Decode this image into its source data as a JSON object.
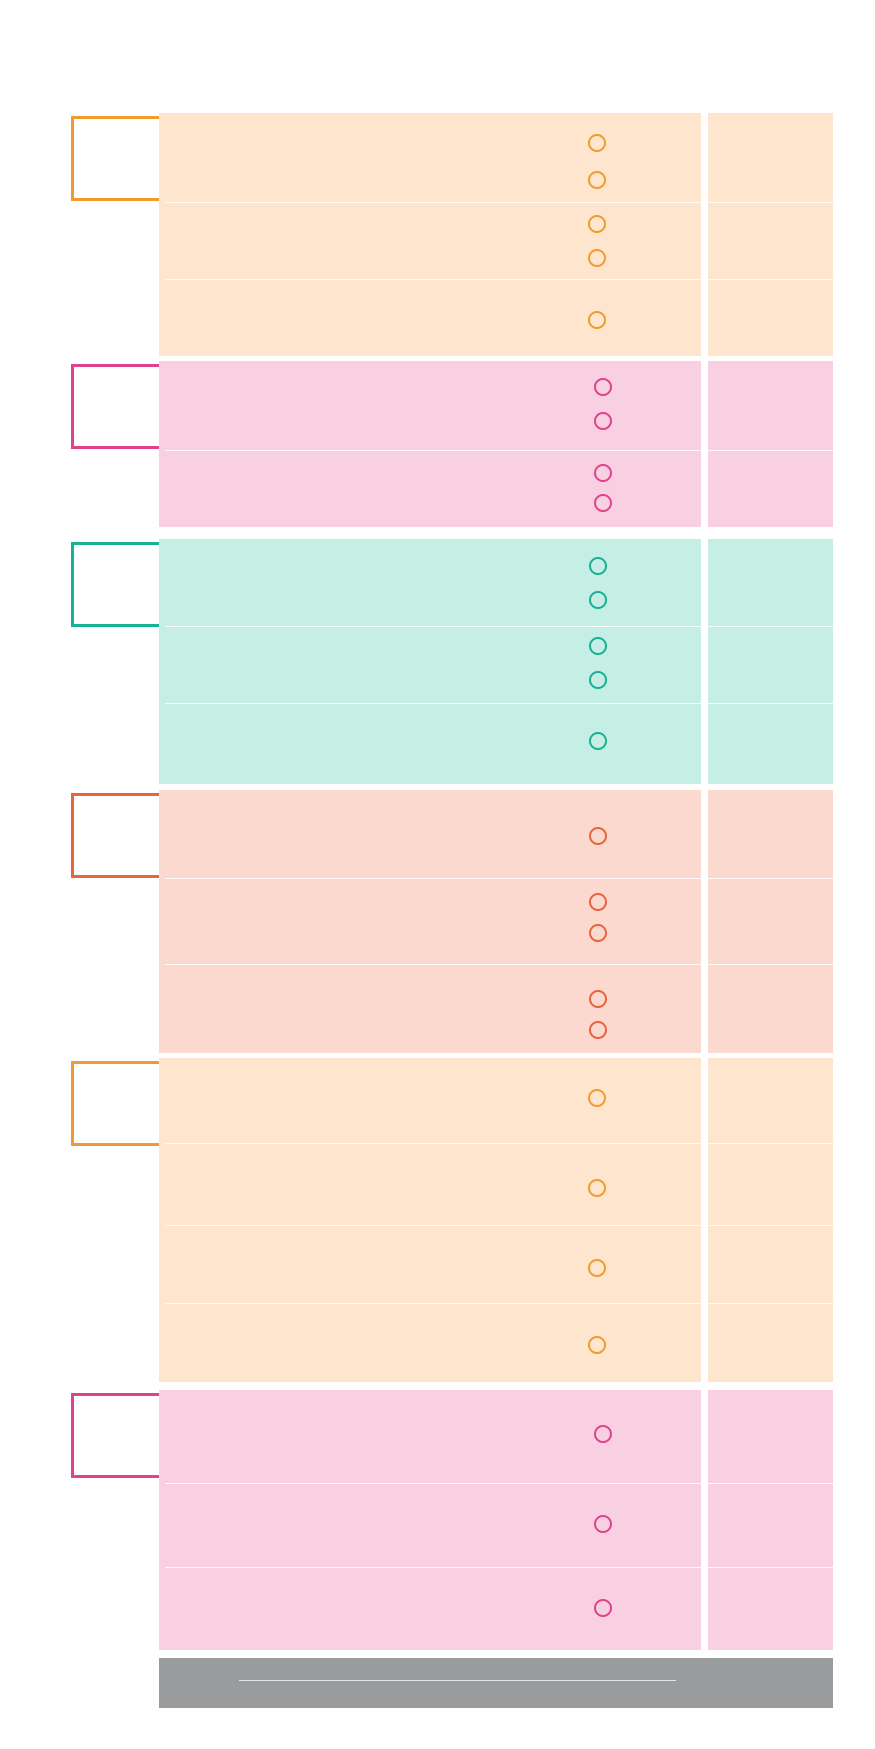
{
  "sections": [
    {
      "color": "#f39a2e",
      "fill": "#fde6cd",
      "rows": [
        2,
        2,
        1
      ]
    },
    {
      "color": "#e0428c",
      "fill": "#f9d0e2",
      "rows": [
        2,
        2
      ]
    },
    {
      "color": "#17b194",
      "fill": "#c5efe5",
      "rows": [
        2,
        2,
        1
      ]
    },
    {
      "color": "#e9643a",
      "fill": "#fbd9cf",
      "rows": [
        1,
        2,
        2
      ]
    },
    {
      "color": "#f39a2e",
      "fill": "#fde6cd",
      "rows": [
        1,
        1,
        1,
        1
      ]
    },
    {
      "color": "#e0428c",
      "fill": "#f9d0e2",
      "rows": [
        1,
        1,
        1
      ]
    }
  ],
  "footer": {
    "color": "#999b9c"
  }
}
